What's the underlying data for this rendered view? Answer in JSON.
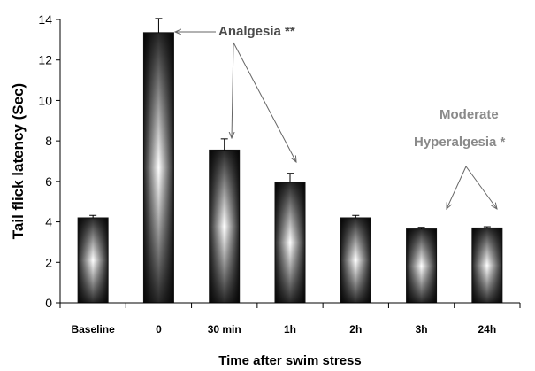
{
  "chart_data": {
    "type": "bar",
    "title": "",
    "xlabel": "Time after swim stress",
    "ylabel": "Tail flick latency (Sec)",
    "ylim": [
      0,
      14
    ],
    "yticks": [
      "0",
      "2",
      "4",
      "6",
      "8",
      "10",
      "12",
      "14"
    ],
    "categories": [
      "Baseline",
      "0",
      "30 min",
      "1h",
      "2h",
      "3h",
      "24h"
    ],
    "values": [
      4.2,
      13.35,
      7.55,
      5.95,
      4.2,
      3.65,
      3.7
    ],
    "errors": [
      0.12,
      0.7,
      0.55,
      0.45,
      0.12,
      0.08,
      0.06
    ],
    "grid": false,
    "legend": "none",
    "annotations": {
      "analgesia": "Analgesia **",
      "hyper_line1": "Moderate",
      "hyper_line2": "Hyperalgesia *"
    },
    "colors": {
      "bar_dark": "#202020",
      "bar_light": "#ffffff",
      "annotation_dark": "#4a4a4a",
      "annotation_light": "#8a8a8a"
    }
  }
}
